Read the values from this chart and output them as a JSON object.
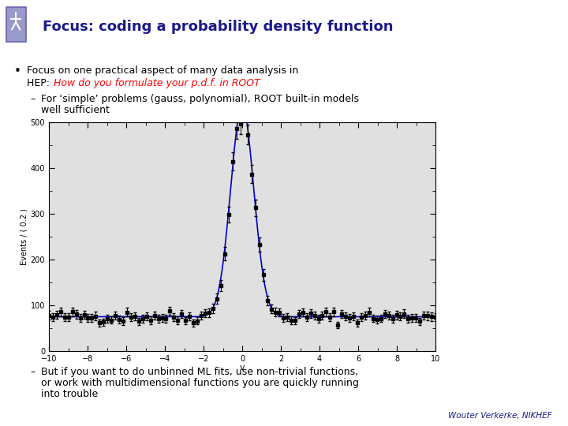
{
  "title": "Focus: coding a probability density function",
  "bullet_main_line1": "Focus on one practical aspect of many data analysis in",
  "bullet_main_line2_black": "HEP: ",
  "bullet_main_line2_red": "How do you formulate your p.d.f. in ROOT",
  "sub_bullet1_dash": "–",
  "sub_bullet1": "For ‘simple’ problems (gauss, polynomial), ROOT built-in models well sufficient",
  "sub_bullet2_dash": "–",
  "sub_bullet2": "But if you want to do unbinned ML fits, use non-trivial functions,\nor work with multidimensional functions you are quickly running\ninto trouble",
  "footer": "Wouter Verkerke, NIKHEF",
  "title_color": "#1a1a8c",
  "header_bg_color": "#d8daf0",
  "background_color": "#ffffff",
  "plot_bg": "#e0e0e0",
  "line_color": "#0000cc",
  "data_color": "#000000",
  "x_label": "v",
  "y_label": "Events / ( 0.2 )",
  "x_range": [
    -10,
    10
  ],
  "y_range": [
    0,
    500
  ],
  "x_ticks": [
    -10,
    -8,
    -6,
    -4,
    -2,
    0,
    2,
    4,
    6,
    8,
    10
  ],
  "y_ticks": [
    0,
    100,
    200,
    300,
    400,
    500
  ],
  "peak_height": 460,
  "flat_level": 75,
  "sigma": 0.6,
  "seed": 42
}
